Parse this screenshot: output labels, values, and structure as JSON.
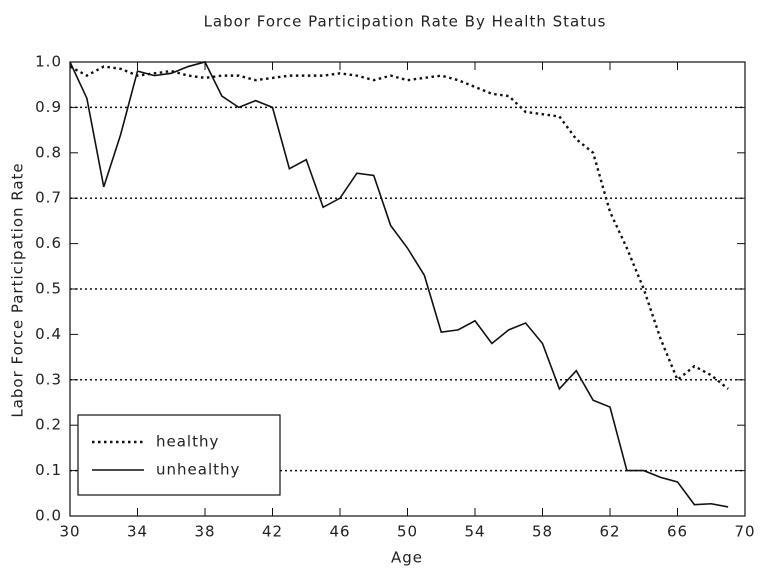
{
  "chart_data": {
    "type": "line",
    "title": "Labor Force Participation Rate By Health Status",
    "x_label": "Age",
    "y_label": "Labor Force Participation Rate",
    "x": [
      30,
      31,
      32,
      33,
      34,
      35,
      36,
      37,
      38,
      39,
      40,
      41,
      42,
      43,
      44,
      45,
      46,
      47,
      48,
      49,
      50,
      51,
      52,
      53,
      54,
      55,
      56,
      57,
      58,
      59,
      60,
      61,
      62,
      63,
      64,
      65,
      66,
      67,
      68,
      69
    ],
    "series": [
      {
        "name": "healthy",
        "color": "#111111",
        "line_style": "dotted",
        "values": [
          0.99,
          0.97,
          0.99,
          0.985,
          0.97,
          0.975,
          0.98,
          0.97,
          0.965,
          0.97,
          0.97,
          0.96,
          0.965,
          0.97,
          0.97,
          0.97,
          0.975,
          0.97,
          0.96,
          0.97,
          0.96,
          0.965,
          0.97,
          0.96,
          0.945,
          0.93,
          0.925,
          0.89,
          0.885,
          0.88,
          0.83,
          0.8,
          0.67,
          0.59,
          0.5,
          0.39,
          0.3,
          0.33,
          0.31,
          0.28
        ]
      },
      {
        "name": "unhealthy",
        "color": "#111111",
        "line_style": "solid",
        "values": [
          1.0,
          0.92,
          0.725,
          0.84,
          0.98,
          0.97,
          0.975,
          0.99,
          1.0,
          0.925,
          0.9,
          0.915,
          0.9,
          0.765,
          0.785,
          0.68,
          0.7,
          0.755,
          0.75,
          0.64,
          0.59,
          0.53,
          0.405,
          0.41,
          0.43,
          0.38,
          0.41,
          0.425,
          0.38,
          0.28,
          0.32,
          0.255,
          0.24,
          0.1,
          0.1,
          0.085,
          0.075,
          0.025,
          0.027,
          0.02
        ]
      }
    ],
    "xlim": [
      30,
      70
    ],
    "xticks": [
      30,
      34,
      38,
      42,
      46,
      50,
      54,
      58,
      62,
      66,
      70
    ],
    "ylim": [
      0,
      1
    ],
    "yticks": [
      {
        "value": 0,
        "label": "0.0"
      },
      0.1,
      0.2,
      0.3,
      0.4,
      0.5,
      0.6,
      0.7,
      0.8,
      0.9,
      {
        "value": 1,
        "label": "1.0"
      }
    ],
    "reference_lines": [
      0.1,
      0.3,
      0.5,
      0.7,
      0.9
    ],
    "legend": "lower left"
  }
}
